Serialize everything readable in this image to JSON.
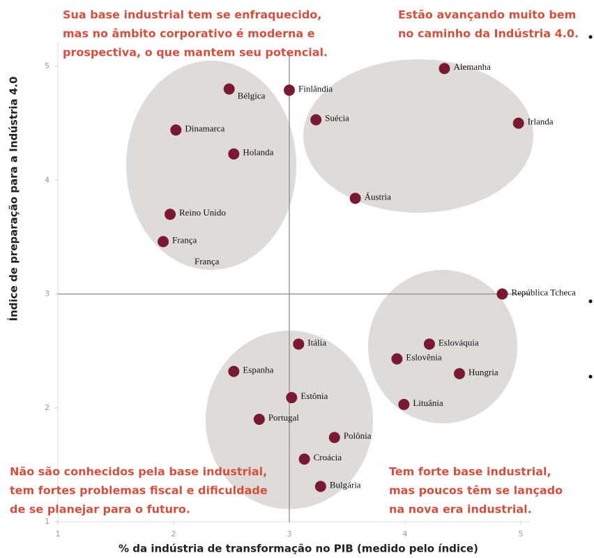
{
  "chart_data": {
    "type": "scatter",
    "x_label": "% da indústria de transformação no PIB (medido pelo índice)",
    "y_label": "Índice de preparação para a Indústria 4.0",
    "xlim": [
      1,
      5
    ],
    "ylim": [
      1,
      5
    ],
    "xticks": [
      1,
      2,
      3,
      4,
      5
    ],
    "yticks": [
      1,
      2,
      3,
      4,
      5
    ],
    "quadrant_lines": {
      "x": 3,
      "y": 3
    },
    "color": "#7a1a30",
    "series": [
      {
        "labels": [
          "Alemanha",
          "Irlanda",
          "Bélgica",
          "Finlândia",
          "Suécia",
          "Dinamarca",
          "Holanda",
          "Áustria",
          "Reino Unido",
          "França",
          "República Tcheca",
          "Itália",
          "Eslováquia",
          "Eslovênia",
          "Espanha",
          "Hungria",
          "Estônia",
          "Lituânia",
          "Portugal",
          "Polônia",
          "Croácia",
          "Bulgária"
        ],
        "x": [
          4.34,
          4.98,
          2.48,
          3.0,
          3.23,
          2.02,
          2.52,
          3.57,
          1.97,
          1.91,
          4.84,
          3.08,
          4.21,
          3.93,
          2.52,
          4.47,
          3.02,
          3.99,
          2.74,
          3.39,
          3.13,
          3.27
        ],
        "values": [
          4.98,
          4.5,
          4.8,
          4.79,
          4.53,
          4.44,
          4.23,
          3.84,
          3.7,
          3.46,
          3.0,
          2.56,
          2.56,
          2.43,
          2.32,
          2.3,
          2.09,
          2.03,
          1.9,
          1.74,
          1.55,
          1.31
        ]
      }
    ],
    "extra_label": "França",
    "annotations": [
      {
        "lines": [
          "Sua base industrial tem se enfraquecido,",
          "mas no âmbito corporativo é moderna e",
          "prospectiva, o que mantem seu potencial."
        ]
      },
      {
        "lines": [
          "Estão avançando muito bem",
          "no caminho da Indústria 4.0."
        ]
      },
      {
        "lines": [
          "Não são conhecidos pela base industrial,",
          "tem fortes problemas fiscal e dificuldade",
          "de se planejar para o futuro."
        ]
      },
      {
        "lines": [
          "Tem forte base industrial,",
          "mas poucos têm se lançado",
          "na nova era industrial."
        ]
      }
    ]
  }
}
